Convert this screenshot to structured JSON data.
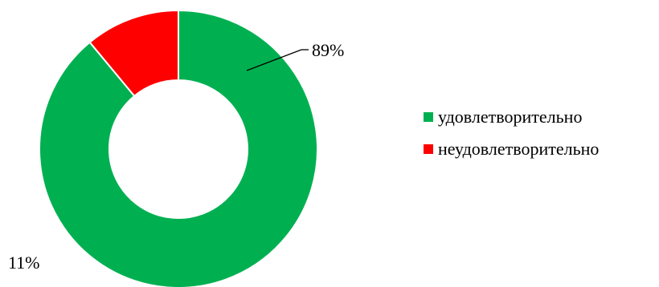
{
  "chart_data": {
    "type": "pie",
    "variant": "doughnut",
    "title": "",
    "categories": [
      "удовлетворительно",
      "неудовлетворительно"
    ],
    "values": [
      89,
      11
    ],
    "labels": [
      "89%",
      "11%"
    ],
    "colors": [
      "#00b050",
      "#ff0000"
    ],
    "legend": "right"
  }
}
